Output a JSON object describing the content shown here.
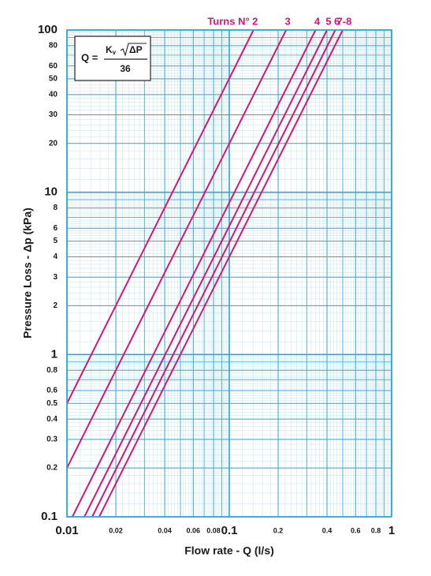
{
  "chart_data": {
    "type": "line",
    "x_label": "Flow rate - Q (l/s)",
    "y_label": "Pressure Loss  - Δp (kPa)",
    "legend_title": "Turns N°",
    "formula": {
      "lhs": "Q =",
      "k": "K",
      "sub": "v",
      "radicand": "ΔP",
      "denominator": "36"
    },
    "log_x": true,
    "log_y": true,
    "grid": true,
    "xlim": [
      0.01,
      1
    ],
    "ylim": [
      0.1,
      100
    ],
    "xticks": [
      0.01,
      0.02,
      0.04,
      0.06,
      0.08,
      0.1,
      0.2,
      0.4,
      0.6,
      0.8,
      1
    ],
    "yticks": [
      0.1,
      0.2,
      0.3,
      0.4,
      0.5,
      0.6,
      0.8,
      1,
      2,
      3,
      4,
      5,
      6,
      8,
      10,
      20,
      30,
      40,
      50,
      60,
      80,
      100
    ],
    "series": [
      {
        "name": "2",
        "color": "#d6157a",
        "x": [
          0.01,
          0.141
        ],
        "values": [
          0.5,
          100
        ]
      },
      {
        "name": "3",
        "color": "#d6157a",
        "x": [
          0.01,
          0.224
        ],
        "values": [
          0.2,
          100
        ]
      },
      {
        "name": "4",
        "color": "#d6157a",
        "x": [
          0.0108,
          0.34
        ],
        "values": [
          0.1,
          100
        ]
      },
      {
        "name": "5",
        "color": "#d6157a",
        "x": [
          0.0128,
          0.4
        ],
        "values": [
          0.1,
          100
        ]
      },
      {
        "name": "6",
        "color": "#d6157a",
        "x": [
          0.0143,
          0.45
        ],
        "values": [
          0.1,
          100
        ]
      },
      {
        "name": "7-8",
        "color": "#d6157a",
        "x": [
          0.0158,
          0.5
        ],
        "values": [
          0.1,
          100
        ]
      }
    ]
  }
}
